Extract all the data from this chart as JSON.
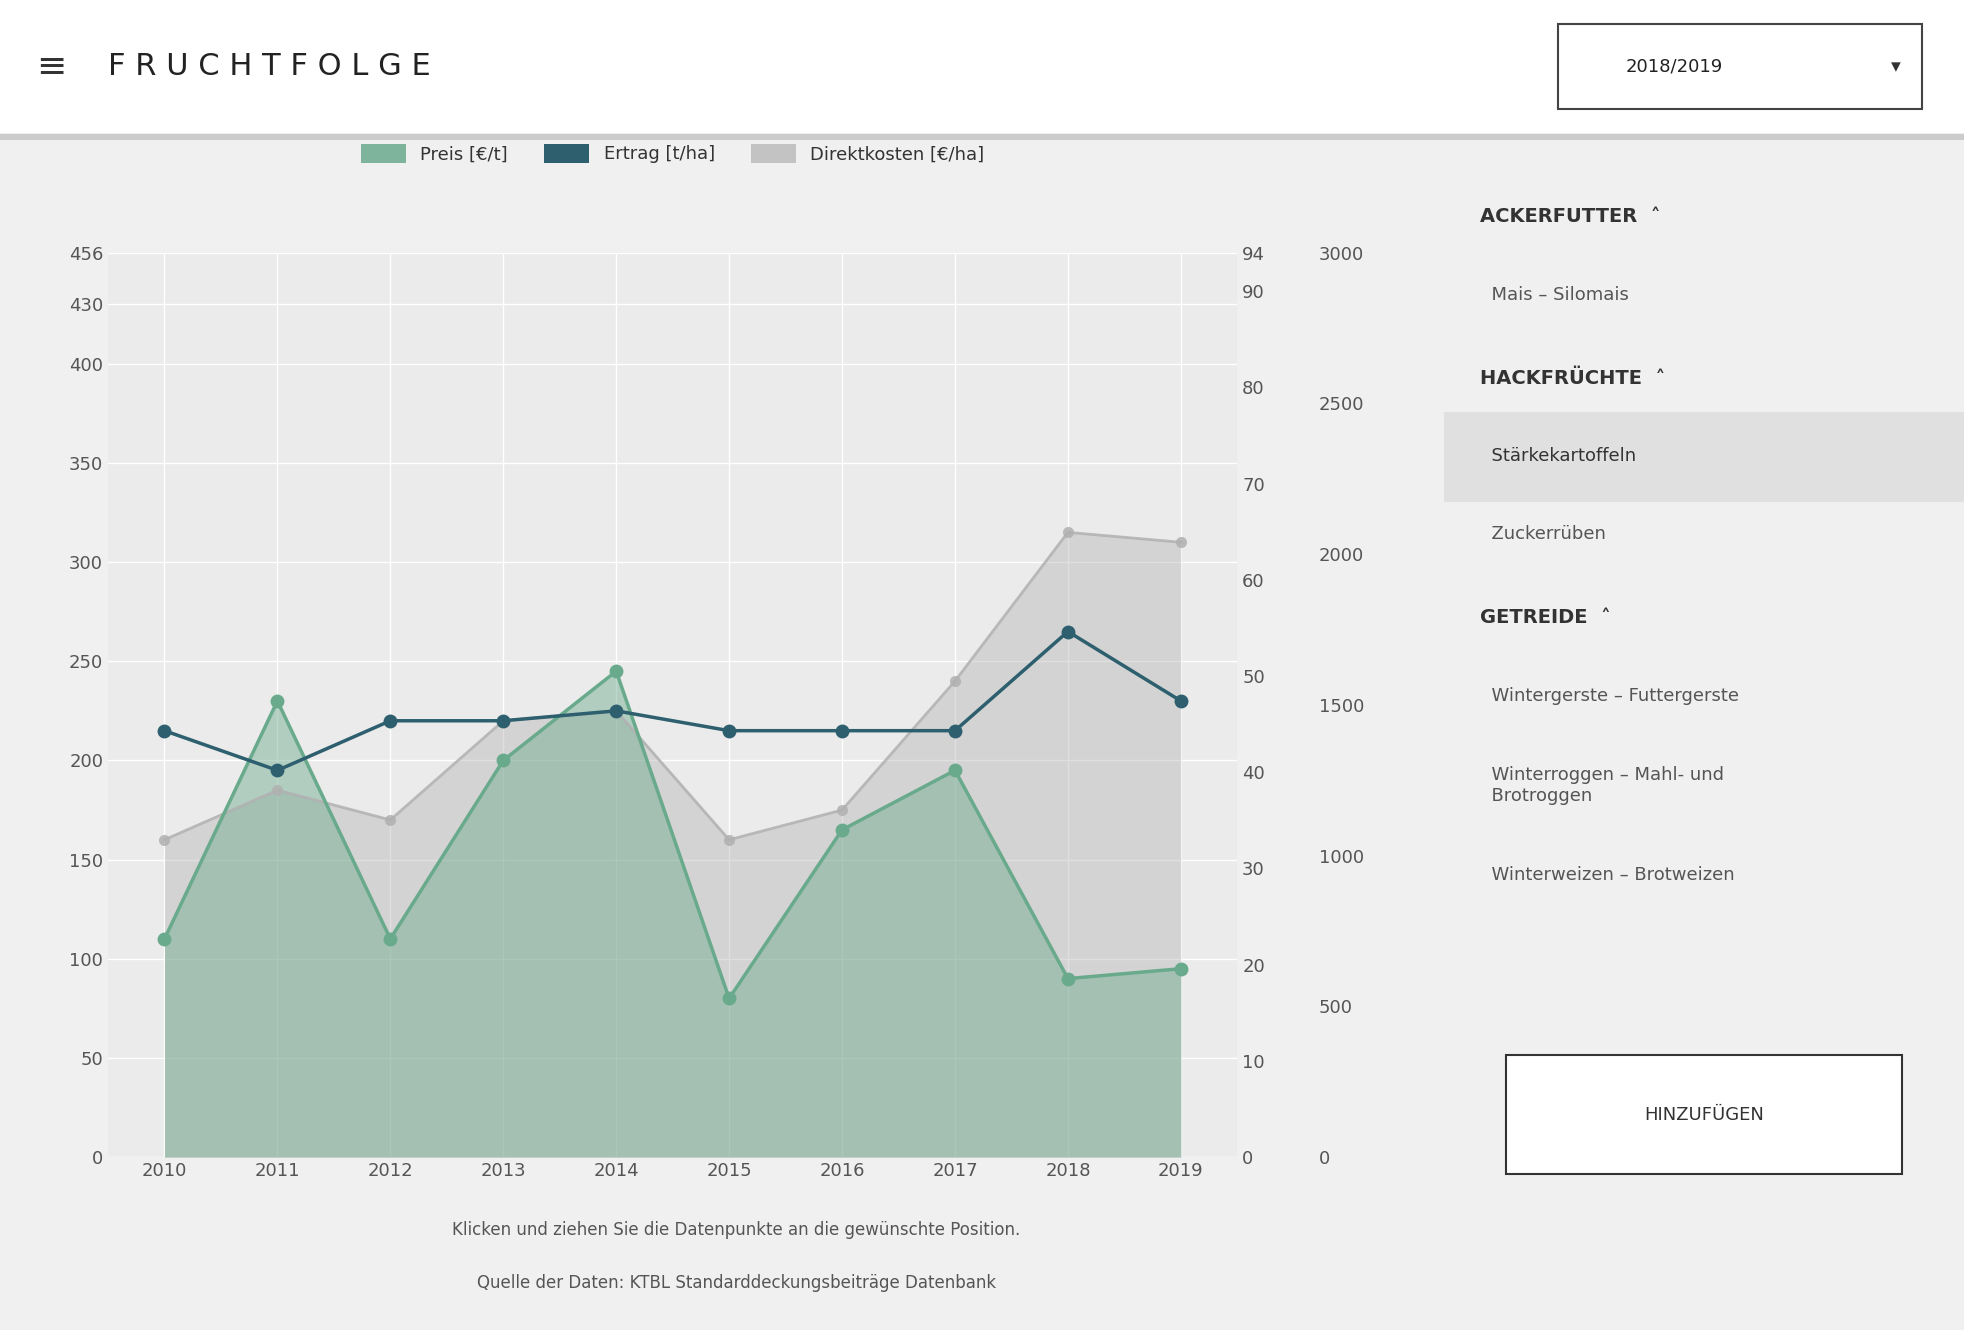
{
  "years": [
    2010,
    2011,
    2012,
    2013,
    2014,
    2015,
    2016,
    2017,
    2018,
    2019
  ],
  "preis": [
    110,
    230,
    110,
    200,
    245,
    80,
    165,
    195,
    90,
    95
  ],
  "ertrag": [
    215,
    195,
    220,
    220,
    225,
    215,
    215,
    215,
    265,
    230
  ],
  "direktkosten": [
    160,
    185,
    170,
    220,
    225,
    160,
    175,
    240,
    315,
    310
  ],
  "bg_color": "#f2f2f2",
  "chart_bg": "#f0f0f0",
  "plot_bg": "#ebebeb",
  "preis_color": "#6aaa8c",
  "ertrag_color": "#2d5f6e",
  "direktkosten_color": "#b0b0b0",
  "grid_color": "#ffffff",
  "legend_labels": [
    "Preis [€/t]",
    "Ertrag [t/ha]",
    "Direktkosten [€/ha]"
  ],
  "footer_line1": "Klicken und ziehen Sie die Datenpunkte an die gewünschte Position.",
  "footer_line2": "Quelle der Daten: KTBL Standarddeckungsbeiträge Datenbank"
}
